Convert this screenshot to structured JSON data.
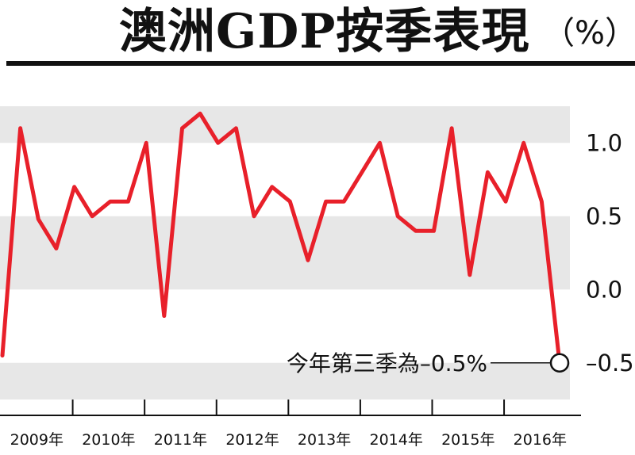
{
  "title": "澳洲GDP按季表現",
  "unit": "（%）",
  "chart_data": {
    "type": "line",
    "title": "澳洲GDP按季表現",
    "xlabel": "",
    "ylabel": "",
    "y_unit": "%",
    "ylim": [
      -0.75,
      1.25
    ],
    "yticks": [
      1.0,
      0.5,
      0.0,
      -0.5
    ],
    "ytick_labels": [
      "1.0",
      "0.5",
      "0.0",
      "–0.5"
    ],
    "grid": "alternating horizontal bands",
    "line_color": "#e8202a",
    "band_color": "#e7e7e7",
    "years": [
      "2009年",
      "2010年",
      "2011年",
      "2012年",
      "2013年",
      "2014年",
      "2015年",
      "2016年"
    ],
    "series": [
      {
        "values": [
          -0.45,
          1.1,
          0.48,
          0.28,
          0.7,
          0.5,
          0.6,
          0.6,
          1.0,
          -0.18,
          1.1,
          1.2,
          1.0,
          1.1,
          0.5,
          0.7,
          0.6,
          0.2,
          0.6,
          0.6,
          0.8,
          1.0,
          0.5,
          0.4,
          0.4,
          1.1,
          0.1,
          0.8,
          0.6,
          1.0,
          0.6,
          -0.5
        ]
      }
    ],
    "annotation": {
      "text": "今年第三季為–0.5%",
      "value": -0.5
    }
  }
}
